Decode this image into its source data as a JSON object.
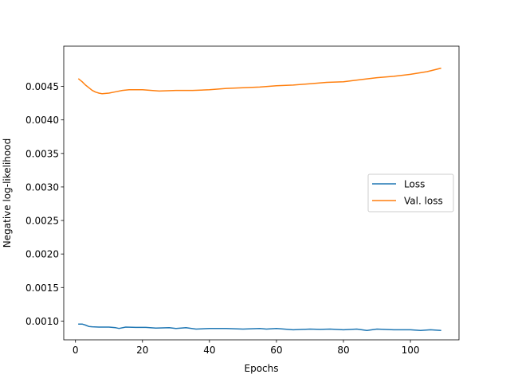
{
  "chart_data": {
    "type": "line",
    "xlabel": "Epochs",
    "ylabel": "Negative log-likelihood",
    "xlim": [
      -3.5,
      114.5
    ],
    "ylim": [
      0.00072,
      0.0051
    ],
    "x_ticks": [
      0,
      20,
      40,
      60,
      80,
      100
    ],
    "y_ticks": [
      0.001,
      0.0015,
      0.002,
      0.0025,
      0.003,
      0.0035,
      0.004,
      0.0045
    ],
    "x_tick_labels": [
      "0",
      "20",
      "40",
      "60",
      "80",
      "100"
    ],
    "y_tick_labels": [
      "0.0010",
      "0.0015",
      "0.0020",
      "0.0025",
      "0.0030",
      "0.0035",
      "0.0040",
      "0.0045"
    ],
    "grid": false,
    "legend": {
      "placement": "center-right",
      "entries": [
        "Loss",
        "Val. loss"
      ]
    },
    "series": [
      {
        "name": "Loss",
        "color": "#1f77b4",
        "points": [
          [
            1,
            0.000955
          ],
          [
            2,
            0.000955
          ],
          [
            3,
            0.00094
          ],
          [
            4,
            0.00092
          ],
          [
            5,
            0.000915
          ],
          [
            7,
            0.00091
          ],
          [
            10,
            0.00091
          ],
          [
            12,
            0.0009
          ],
          [
            13,
            0.00089
          ],
          [
            15,
            0.00091
          ],
          [
            18,
            0.000905
          ],
          [
            21,
            0.000905
          ],
          [
            24,
            0.000895
          ],
          [
            28,
            0.0009
          ],
          [
            30,
            0.00089
          ],
          [
            33,
            0.0009
          ],
          [
            36,
            0.00088
          ],
          [
            40,
            0.00089
          ],
          [
            45,
            0.00089
          ],
          [
            50,
            0.00088
          ],
          [
            55,
            0.00089
          ],
          [
            57,
            0.00088
          ],
          [
            60,
            0.00089
          ],
          [
            65,
            0.00087
          ],
          [
            70,
            0.00088
          ],
          [
            73,
            0.000875
          ],
          [
            76,
            0.00088
          ],
          [
            80,
            0.00087
          ],
          [
            84,
            0.00088
          ],
          [
            87,
            0.00086
          ],
          [
            90,
            0.00088
          ],
          [
            95,
            0.00087
          ],
          [
            100,
            0.00087
          ],
          [
            103,
            0.00086
          ],
          [
            106,
            0.00087
          ],
          [
            109,
            0.00086
          ]
        ]
      },
      {
        "name": "Val. loss",
        "color": "#ff7f0e",
        "points": [
          [
            1,
            0.00461
          ],
          [
            2,
            0.00457
          ],
          [
            3,
            0.00452
          ],
          [
            4,
            0.00448
          ],
          [
            5,
            0.00444
          ],
          [
            6,
            0.004415
          ],
          [
            7,
            0.0044
          ],
          [
            8,
            0.00439
          ],
          [
            10,
            0.0044
          ],
          [
            12,
            0.00442
          ],
          [
            14,
            0.00444
          ],
          [
            16,
            0.00445
          ],
          [
            20,
            0.00445
          ],
          [
            25,
            0.00443
          ],
          [
            30,
            0.00444
          ],
          [
            35,
            0.00444
          ],
          [
            40,
            0.00445
          ],
          [
            45,
            0.00447
          ],
          [
            50,
            0.00448
          ],
          [
            55,
            0.00449
          ],
          [
            60,
            0.00451
          ],
          [
            65,
            0.00452
          ],
          [
            70,
            0.00454
          ],
          [
            75,
            0.00456
          ],
          [
            80,
            0.00457
          ],
          [
            85,
            0.0046
          ],
          [
            90,
            0.00463
          ],
          [
            95,
            0.00465
          ],
          [
            100,
            0.00468
          ],
          [
            105,
            0.00472
          ],
          [
            109,
            0.00477
          ]
        ]
      }
    ]
  }
}
